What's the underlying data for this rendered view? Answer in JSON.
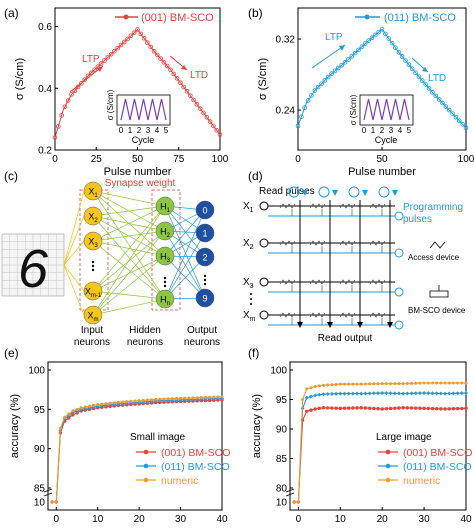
{
  "panels": {
    "a": {
      "letter": "(a)",
      "legend": "(001) BM-SCO",
      "ltp": "LTP",
      "ltd": "LTD",
      "inset_ylabel": "σ (S/cm)",
      "inset_xlabel": "Cycle",
      "inset_ticks": [
        "0",
        "1",
        "2",
        "3",
        "4",
        "5"
      ]
    },
    "b": {
      "letter": "(b)",
      "legend": "(011) BM-SCO",
      "ltp": "LTP",
      "ltd": "LTD",
      "inset_ylabel": "σ (S/cm)",
      "inset_xlabel": "Cycle",
      "inset_ticks": [
        "0",
        "1",
        "2",
        "3",
        "4",
        "5"
      ]
    },
    "c": {
      "letter": "(c)",
      "synapse_label": "Synapse weight",
      "inputs": [
        "X1",
        "X2",
        "X3",
        "Xm-1",
        "Xm"
      ],
      "hidden": [
        "H1",
        "H2",
        "H3",
        "Hn"
      ],
      "outputs": [
        "0",
        "1",
        "2",
        "9"
      ],
      "digit": "6",
      "cap_input": [
        "Input",
        "neurons"
      ],
      "cap_hidden": [
        "Hidden",
        "neurons"
      ],
      "cap_output": [
        "Output",
        "neurons"
      ]
    },
    "d": {
      "letter": "(d)",
      "read_pulses": "Read pulses",
      "programming": [
        "Programming",
        "pulses"
      ],
      "access_device": "Access device",
      "bm_device": "BM-SCO device",
      "read_output": "Read output",
      "rows": [
        "X1",
        "X2",
        "X3",
        "Xm"
      ]
    },
    "e": {
      "letter": "(e)",
      "note": "Small image"
    },
    "f": {
      "letter": "(f)",
      "note": "Large image"
    }
  },
  "colors": {
    "red": "#e8423b",
    "blue": "#1e9be0",
    "orange": "#f39a2b",
    "purple": "#7b3fb6",
    "yellow": "#f5c518",
    "green": "#8cc63f",
    "navy": "#1f4fa3"
  },
  "chart_data": [
    {
      "type": "line",
      "panel": "a",
      "xlabel": "Pulse number",
      "ylabel": "σ (S/cm)",
      "xlim": [
        0,
        100
      ],
      "ylim": [
        0.2,
        0.66
      ],
      "xticks": [
        0,
        25,
        50,
        75,
        100
      ],
      "yticks": [
        0.2,
        0.4,
        0.6
      ],
      "series": [
        {
          "name": "(001) BM-SCO",
          "peak_pulse": 50,
          "x": [
            0,
            5,
            10,
            20,
            30,
            40,
            50,
            60,
            70,
            80,
            90,
            100
          ],
          "y": [
            0.24,
            0.33,
            0.38,
            0.44,
            0.49,
            0.54,
            0.59,
            0.52,
            0.46,
            0.39,
            0.32,
            0.25
          ]
        }
      ]
    },
    {
      "type": "line",
      "panel": "b",
      "xlabel": "Pulse number",
      "ylabel": "σ (S/cm)",
      "xlim": [
        0,
        100
      ],
      "ylim": [
        0.195,
        0.355
      ],
      "xticks": [
        0,
        50,
        100
      ],
      "yticks": [
        0.24,
        0.32
      ],
      "series": [
        {
          "name": "(011) BM-SCO",
          "peak_pulse": 50,
          "x": [
            0,
            5,
            10,
            20,
            30,
            40,
            50,
            60,
            70,
            80,
            90,
            100
          ],
          "y": [
            0.222,
            0.248,
            0.262,
            0.281,
            0.297,
            0.315,
            0.331,
            0.305,
            0.282,
            0.26,
            0.24,
            0.22
          ]
        }
      ]
    },
    {
      "type": "line",
      "panel": "e",
      "xlabel": "Training epoch",
      "ylabel": "accuracy (%)",
      "xlim": [
        -2,
        40
      ],
      "ylim": [
        85,
        100
      ],
      "y_break_label": "10",
      "xticks": [
        0,
        10,
        20,
        30,
        40
      ],
      "yticks": [
        85,
        90,
        95,
        100
      ],
      "series": [
        {
          "name": "(001) BM-SCO",
          "x": [
            -1,
            0,
            1,
            2,
            4,
            6,
            10,
            15,
            20,
            25,
            30,
            35,
            40
          ],
          "y": [
            null,
            null,
            92.0,
            93.5,
            94.3,
            94.8,
            95.2,
            95.5,
            95.7,
            95.9,
            96.0,
            96.1,
            96.2
          ]
        },
        {
          "name": "(011) BM-SCO",
          "x": [
            -1,
            0,
            1,
            2,
            4,
            6,
            10,
            15,
            20,
            25,
            30,
            35,
            40
          ],
          "y": [
            null,
            null,
            92.3,
            93.8,
            94.6,
            95.0,
            95.4,
            95.7,
            95.9,
            96.1,
            96.2,
            96.3,
            96.4
          ]
        },
        {
          "name": "numeric",
          "x": [
            -1,
            0,
            1,
            2,
            4,
            6,
            10,
            15,
            20,
            25,
            30,
            35,
            40
          ],
          "y": [
            null,
            null,
            92.6,
            94.0,
            94.8,
            95.2,
            95.6,
            95.9,
            96.1,
            96.3,
            96.4,
            96.5,
            96.6
          ]
        }
      ]
    },
    {
      "type": "line",
      "panel": "f",
      "xlabel": "Training epoch",
      "ylabel": "accuracy (%)",
      "xlim": [
        -2,
        40
      ],
      "ylim": [
        80,
        100
      ],
      "y_break_label": "10",
      "xticks": [
        0,
        10,
        20,
        30,
        40
      ],
      "yticks": [
        80,
        85,
        90,
        95,
        100
      ],
      "series": [
        {
          "name": "(001) BM-SCO",
          "x": [
            -1,
            0,
            1,
            2,
            4,
            6,
            10,
            15,
            20,
            25,
            30,
            35,
            40
          ],
          "y": [
            null,
            null,
            91.5,
            93.0,
            93.4,
            93.6,
            93.5,
            93.6,
            93.4,
            93.6,
            93.5,
            93.4,
            93.5
          ]
        },
        {
          "name": "(011) BM-SCO",
          "x": [
            -1,
            0,
            1,
            2,
            4,
            6,
            10,
            15,
            20,
            25,
            30,
            35,
            40
          ],
          "y": [
            null,
            null,
            93.5,
            95.3,
            95.7,
            95.9,
            96.0,
            96.0,
            96.1,
            96.0,
            96.1,
            96.0,
            96.1
          ]
        },
        {
          "name": "numeric",
          "x": [
            -1,
            0,
            1,
            2,
            4,
            6,
            10,
            15,
            20,
            25,
            30,
            35,
            40
          ],
          "y": [
            null,
            null,
            95.0,
            96.8,
            97.2,
            97.4,
            97.6,
            97.6,
            97.7,
            97.7,
            97.8,
            97.8,
            97.8
          ]
        }
      ]
    }
  ]
}
